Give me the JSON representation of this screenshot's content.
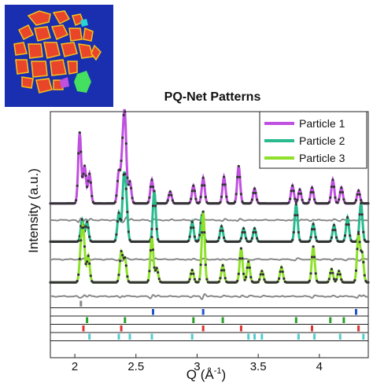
{
  "chart_data": {
    "type": "line",
    "title": "PQ-Net Patterns",
    "xlabel": "Q (Å",
    "xlabel_sup": "-1",
    "xlabel_close": ")",
    "ylabel": "Intensity (a.u.)",
    "xlim": [
      1.8,
      4.4
    ],
    "xticks": [
      2,
      2.5,
      3,
      3.5,
      4
    ],
    "xtick_labels": [
      "2",
      "2.5",
      "3",
      "3.5",
      "4"
    ],
    "legend_position": "top-right",
    "colors": {
      "particle1": "#c050e0",
      "particle2": "#2aba8e",
      "particle3": "#8ee02a",
      "fit": "#333333",
      "residual": "#888888",
      "inset_bg": "#1a2fb0",
      "inset_particle": "#e8452a"
    },
    "series": [
      {
        "name": "Particle 1",
        "color": "#c050e0",
        "baseline": 0.9,
        "peaks": [
          [
            2.04,
            7.2
          ],
          [
            2.08,
            3.8
          ],
          [
            2.12,
            3.0
          ],
          [
            2.36,
            3.2
          ],
          [
            2.39,
            4.5
          ],
          [
            2.41,
            8.2
          ],
          [
            2.45,
            2.2
          ],
          [
            2.63,
            2.4
          ],
          [
            2.78,
            1.2
          ],
          [
            2.97,
            1.8
          ],
          [
            3.05,
            2.6
          ],
          [
            3.22,
            2.7
          ],
          [
            3.34,
            3.8
          ],
          [
            3.47,
            1.5
          ],
          [
            3.78,
            1.8
          ],
          [
            3.84,
            1.4
          ],
          [
            3.94,
            1.6
          ],
          [
            4.11,
            2.4
          ],
          [
            4.18,
            1.6
          ],
          [
            4.32,
            1.3
          ]
        ]
      },
      {
        "name": "Particle 2",
        "color": "#2aba8e",
        "baseline": 0.9,
        "peaks": [
          [
            2.06,
            2.0
          ],
          [
            2.1,
            1.8
          ],
          [
            2.36,
            2.6
          ],
          [
            2.4,
            5.2
          ],
          [
            2.42,
            3.5
          ],
          [
            2.65,
            4.6
          ],
          [
            2.96,
            1.8
          ],
          [
            3.04,
            2.4
          ],
          [
            3.2,
            1.4
          ],
          [
            3.38,
            1.2
          ],
          [
            3.47,
            1.2
          ],
          [
            3.81,
            3.4
          ],
          [
            3.95,
            1.6
          ],
          [
            4.12,
            1.5
          ],
          [
            4.23,
            2.2
          ],
          [
            4.34,
            3.5
          ]
        ]
      },
      {
        "name": "Particle 3",
        "color": "#8ee02a",
        "baseline": 0.9,
        "peaks": [
          [
            2.05,
            3.2
          ],
          [
            2.07,
            5.0
          ],
          [
            2.11,
            2.8
          ],
          [
            2.38,
            3.2
          ],
          [
            2.41,
            2.5
          ],
          [
            2.63,
            4.8
          ],
          [
            2.67,
            1.5
          ],
          [
            2.96,
            1.3
          ],
          [
            3.05,
            7.5
          ],
          [
            3.21,
            1.8
          ],
          [
            3.36,
            3.6
          ],
          [
            3.42,
            2.2
          ],
          [
            3.53,
            1.2
          ],
          [
            3.69,
            1.6
          ],
          [
            3.95,
            3.8
          ],
          [
            4.1,
            1.4
          ],
          [
            4.16,
            1.2
          ],
          [
            4.32,
            5.0
          ],
          [
            4.35,
            3.0
          ]
        ]
      }
    ],
    "reflection_rows": [
      {
        "color": "#888888",
        "q": [
          2.05
        ]
      },
      {
        "color": "#2255cc",
        "q": [
          2.64,
          3.05,
          4.3
        ]
      },
      {
        "color": "#2aa02a",
        "q": [
          2.1,
          2.41,
          2.97,
          3.21,
          3.81,
          4.09,
          4.2
        ]
      },
      {
        "color": "#dd3333",
        "q": [
          2.07,
          2.38,
          3.05,
          3.36,
          3.94,
          4.32
        ]
      },
      {
        "color": "#55cccc",
        "q": [
          2.12,
          2.36,
          2.45,
          2.63,
          2.96,
          3.42,
          3.47,
          3.53,
          3.83,
          3.96,
          4.17,
          4.36
        ]
      }
    ]
  }
}
